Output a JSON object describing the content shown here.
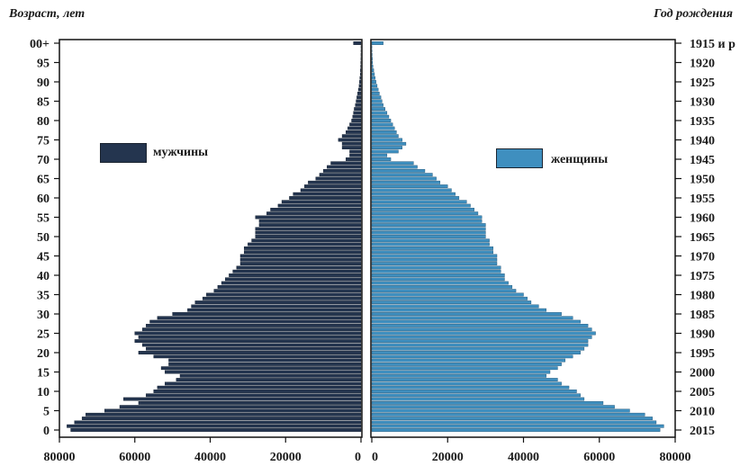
{
  "chart_data": {
    "type": "bar",
    "subtype": "population-pyramid",
    "ylabel_left": "Возраст, лет",
    "ylabel_right": "Год рождения",
    "age_tick_labels": [
      "0",
      "5",
      "10",
      "15",
      "20",
      "25",
      "30",
      "35",
      "40",
      "45",
      "50",
      "55",
      "60",
      "65",
      "70",
      "75",
      "80",
      "85",
      "90",
      "95",
      "00+"
    ],
    "birth_year_tick_labels": [
      "2015",
      "2010",
      "2005",
      "2000",
      "1995",
      "1990",
      "1985",
      "1980",
      "1975",
      "1970",
      "1965",
      "1960",
      "1955",
      "1950",
      "1945",
      "1940",
      "1935",
      "1930",
      "1925",
      "1920",
      "1915 и р"
    ],
    "x_tick_labels_left": [
      "80000",
      "60000",
      "40000",
      "20000",
      "0"
    ],
    "x_tick_labels_right": [
      "0",
      "20000",
      "40000",
      "60000",
      "80000"
    ],
    "xlim": [
      0,
      80000
    ],
    "ages": [
      0,
      1,
      2,
      3,
      4,
      5,
      6,
      7,
      8,
      9,
      10,
      11,
      12,
      13,
      14,
      15,
      16,
      17,
      18,
      19,
      20,
      21,
      22,
      23,
      24,
      25,
      26,
      27,
      28,
      29,
      30,
      31,
      32,
      33,
      34,
      35,
      36,
      37,
      38,
      39,
      40,
      41,
      42,
      43,
      44,
      45,
      46,
      47,
      48,
      49,
      50,
      51,
      52,
      53,
      54,
      55,
      56,
      57,
      58,
      59,
      60,
      61,
      62,
      63,
      64,
      65,
      66,
      67,
      68,
      69,
      70,
      71,
      72,
      73,
      74,
      75,
      76,
      77,
      78,
      79,
      80,
      81,
      82,
      83,
      84,
      85,
      86,
      87,
      88,
      89,
      90,
      91,
      92,
      93,
      94,
      95,
      96,
      97,
      98,
      99,
      100
    ],
    "series": [
      {
        "name": "мужчины",
        "color": "#24354f",
        "values": [
          77000,
          78000,
          76000,
          74000,
          73000,
          68000,
          64000,
          59000,
          63000,
          57000,
          55000,
          54000,
          52000,
          49000,
          48000,
          52000,
          53000,
          51000,
          51000,
          55000,
          59000,
          57000,
          58000,
          60000,
          59000,
          60000,
          58000,
          57000,
          56000,
          54000,
          50000,
          46000,
          45000,
          44000,
          42000,
          41000,
          39000,
          38000,
          37000,
          36000,
          35000,
          34000,
          33000,
          32000,
          32000,
          32000,
          31000,
          31000,
          30000,
          29000,
          28000,
          28000,
          28000,
          27000,
          27000,
          28000,
          25000,
          24000,
          22000,
          21000,
          19000,
          18000,
          16000,
          15000,
          14000,
          12000,
          11000,
          10000,
          9000,
          8000,
          4000,
          3000,
          3000,
          5000,
          5000,
          6000,
          5000,
          4000,
          3500,
          3000,
          2500,
          2200,
          2000,
          1800,
          1500,
          1300,
          1100,
          900,
          700,
          500,
          400,
          300,
          200,
          150,
          100,
          50,
          30,
          20,
          10,
          5,
          2000
        ]
      },
      {
        "name": "женщины",
        "color": "#3f8fbf",
        "values": [
          76000,
          77000,
          75000,
          74000,
          72000,
          68000,
          64000,
          61000,
          56000,
          55000,
          54000,
          52000,
          50000,
          49000,
          46000,
          47000,
          49000,
          50000,
          51000,
          53000,
          55000,
          56000,
          57000,
          57000,
          58000,
          59000,
          58000,
          57000,
          55000,
          53000,
          50000,
          46000,
          44000,
          42000,
          41000,
          40000,
          38000,
          37000,
          36000,
          35000,
          35000,
          34000,
          34000,
          33000,
          33000,
          33000,
          32000,
          32000,
          31000,
          31000,
          30000,
          30000,
          30000,
          30000,
          29000,
          29000,
          28000,
          27000,
          26000,
          25000,
          23000,
          22000,
          21000,
          20000,
          18000,
          17000,
          16000,
          14000,
          12000,
          11000,
          5000,
          4000,
          7000,
          8000,
          9000,
          8000,
          7000,
          6500,
          6000,
          5500,
          5000,
          4500,
          4000,
          3500,
          3000,
          2700,
          2400,
          2000,
          1700,
          1400,
          1100,
          900,
          700,
          500,
          300,
          200,
          150,
          100,
          60,
          30,
          3000
        ]
      }
    ],
    "legend_placement": "inside, beside each half"
  }
}
